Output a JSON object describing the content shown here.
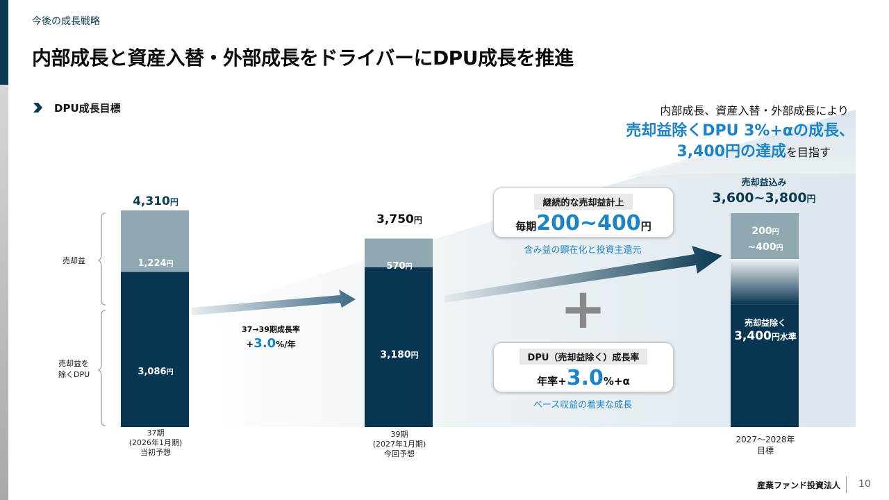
{
  "header": {
    "section_label": "今後の成長戦略",
    "title": "内部成長と資産入替・外部成長をドライバーにDPU成長を推進",
    "subtitle": "DPU成長目標"
  },
  "callout": {
    "line1": "内部成長、資産入替・外部成長により",
    "line2": "売却益除くDPU 3%+αの成長、",
    "line3_main": "3,400円の達成",
    "line3_suffix": "を目指す"
  },
  "segment_labels": {
    "gain": "売却益",
    "base_line1": "売却益を",
    "base_line2": "除くDPU"
  },
  "growth_rate_37_39": {
    "label": "37→39期成長率",
    "prefix": "+",
    "value": "3.0",
    "unit": "%/年"
  },
  "box_gain": {
    "label": "継続的な売却益計上",
    "prefix": "毎期",
    "value": "200~400",
    "unit": "円",
    "note": "含み益の顕在化と投資主還元"
  },
  "box_dpu": {
    "label": "DPU（売却益除く）成長率",
    "prefix": "年率+",
    "value": "3.0",
    "unit": "%+α",
    "note": "ベース収益の着実な成長"
  },
  "plus_sign": "+",
  "target_labels": {
    "incl_label": "売却益込み",
    "incl_value": "3,600~3,800",
    "incl_unit": "円",
    "gain_line1_value": "200",
    "gain_line1_unit": "円",
    "gain_line2_value": "~400",
    "gain_line2_unit": "円",
    "base_label": "売却益除く",
    "base_value": "3,400",
    "base_unit": "円水準"
  },
  "chart_data": {
    "type": "bar",
    "stacked": true,
    "unit": "円",
    "categories": [
      {
        "line1": "37期",
        "line2": "(2026年1月期)",
        "line3": "当初予想"
      },
      {
        "line1": "39期",
        "line2": "(2027年1月期)",
        "line3": "今回予想"
      },
      {
        "line1": "2027〜2028年",
        "line2": "目標",
        "line3": ""
      }
    ],
    "series": [
      {
        "name": "売却益を除くDPU",
        "values": [
          3086,
          3180,
          3400
        ],
        "labels": [
          "3,086",
          "3,180",
          ""
        ],
        "color": "#083551"
      },
      {
        "name": "売却益",
        "values": [
          1224,
          570,
          300
        ],
        "labels": [
          "1,224",
          "570",
          ""
        ],
        "color": "#8fa8b1"
      }
    ],
    "totals": [
      4310,
      3750,
      null
    ],
    "total_labels": [
      "4,310",
      "3,750",
      ""
    ]
  },
  "footer": {
    "company": "産業ファンド投資法人",
    "page": "10"
  }
}
